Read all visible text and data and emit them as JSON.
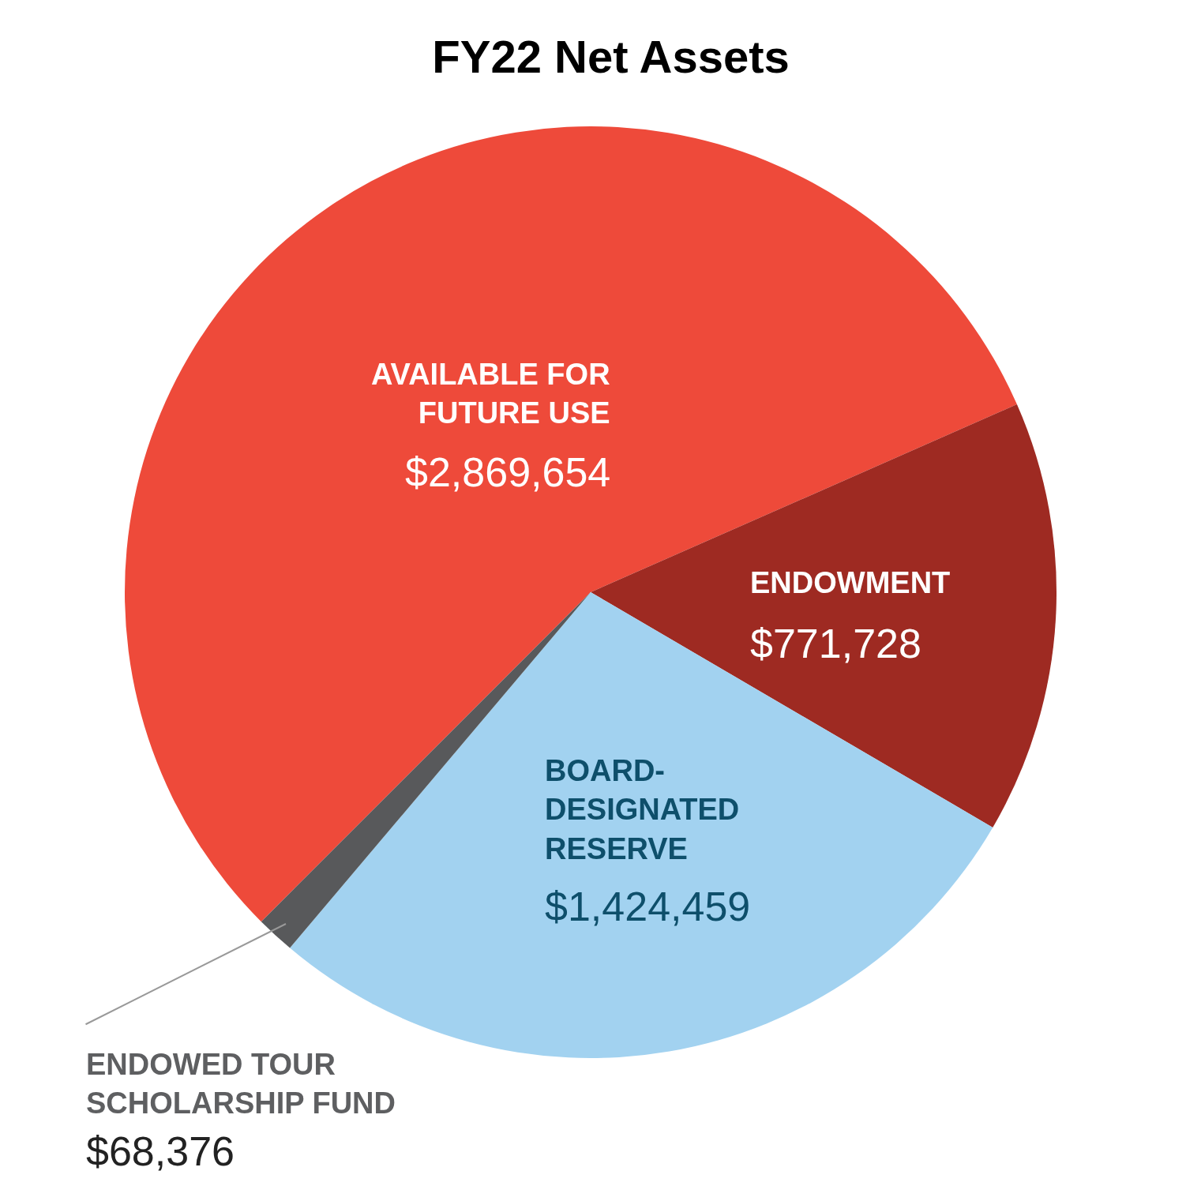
{
  "chart_data": {
    "type": "pie",
    "title": "FY22 Net Assets",
    "categories": [
      "AVAILABLE FOR FUTURE USE",
      "ENDOWMENT",
      "BOARD-DESIGNATED RESERVE",
      "ENDOWED TOUR SCHOLARSHIP FUND"
    ],
    "values": [
      2869654,
      771728,
      1424459,
      68376
    ],
    "value_labels": [
      "$2,869,654",
      "$771,728",
      "$1,424,459",
      "$68,376"
    ],
    "colors": [
      "#ee4a3a",
      "#9e2a22",
      "#a2d2f0",
      "#58595b"
    ],
    "legend": false
  }
}
